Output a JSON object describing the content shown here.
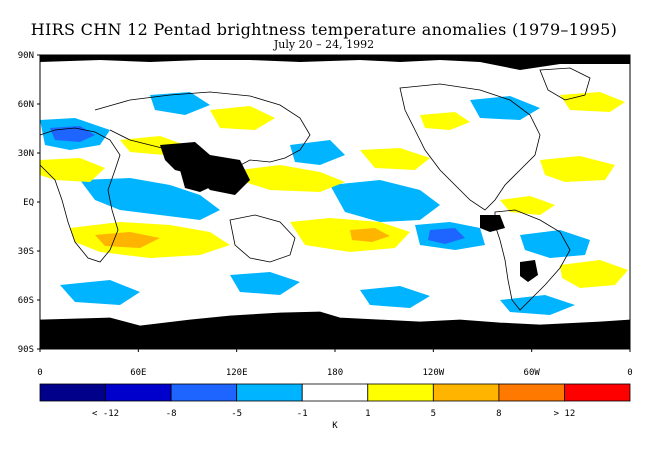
{
  "title": "HIRS CHN 12 Pentad brightness temperature anomalies (1979–1995)",
  "subtitle": "July 20 – 24, 1992",
  "lat_labels": [
    "90N",
    "60N",
    "30N",
    "EQ",
    "30S",
    "60S",
    "90S"
  ],
  "lon_labels": [
    "0",
    "60E",
    "120E",
    "180",
    "120W",
    "60W",
    "0"
  ],
  "colorbar": {
    "colors": [
      "#00008b",
      "#0000cd",
      "#1e64ff",
      "#00b4ff",
      "#ffffff",
      "#ffff00",
      "#ffb400",
      "#ff7800",
      "#ff0000"
    ],
    "labels": [
      "< -12",
      "-8",
      "-5",
      "-1",
      "1",
      "5",
      "8",
      "> 12"
    ],
    "unit": "K"
  },
  "anomaly_colors": {
    "cold_strong": "#1e64ff",
    "cold": "#00b4ff",
    "warm": "#ffff00",
    "warm_strong": "#ffb400",
    "missing": "#000000",
    "coast": "#000000"
  }
}
